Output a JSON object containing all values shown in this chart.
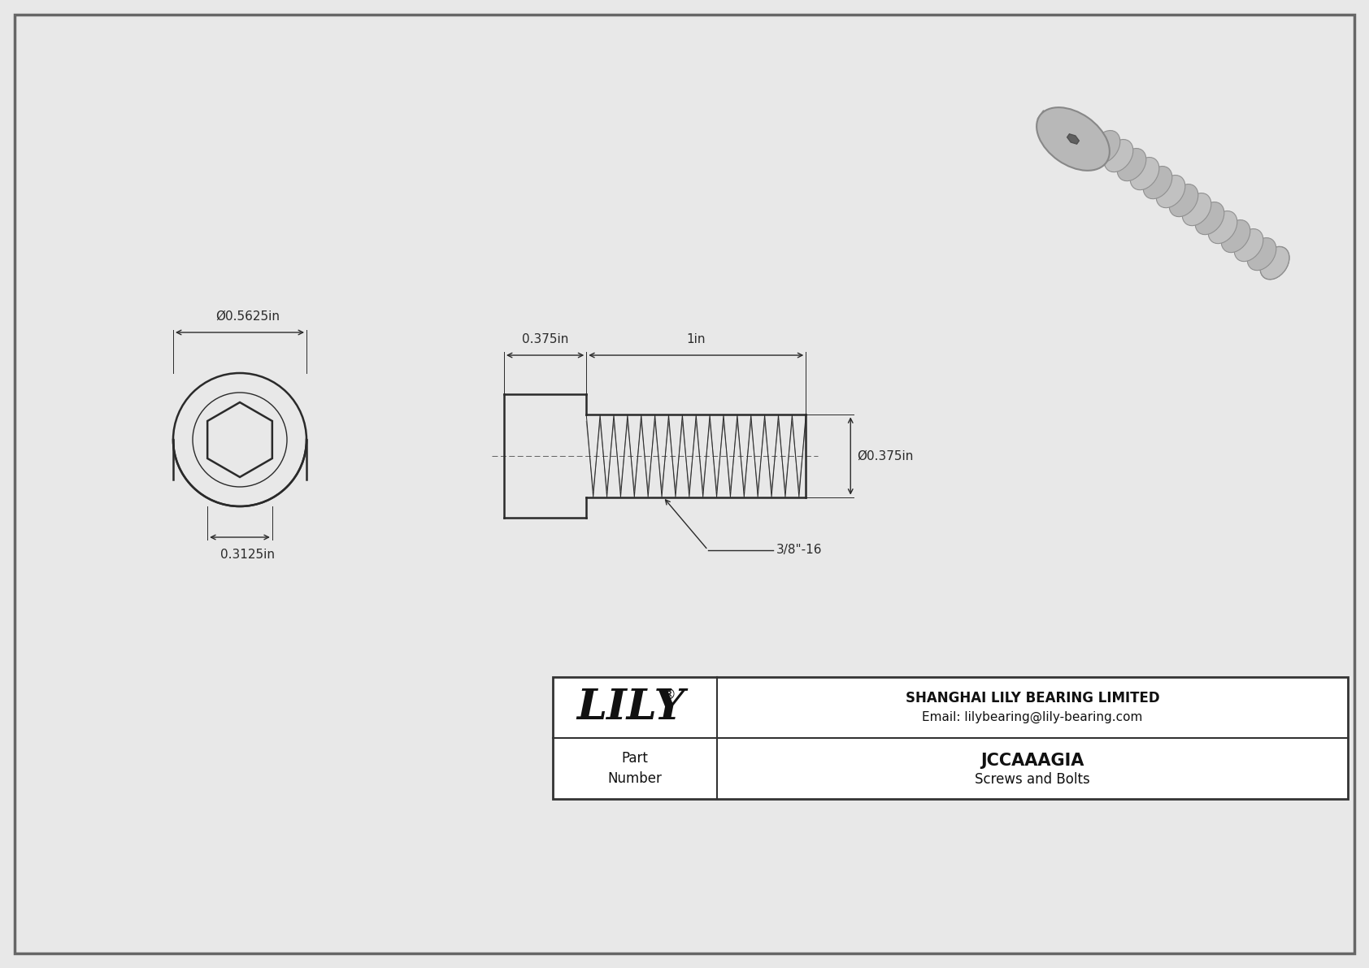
{
  "bg_color": "#e8e8e8",
  "drawing_bg": "#ffffff",
  "line_color": "#2a2a2a",
  "dim_color": "#2a2a2a",
  "title": "JCCAAAGIA",
  "subtitle": "Screws and Bolts",
  "company": "SHANGHAI LILY BEARING LIMITED",
  "email": "Email: lilybearing@lily-bearing.com",
  "part_label": "Part\nNumber",
  "logo_text": "LILY",
  "logo_reg": "®",
  "dim_head_diameter": "Ø0.5625in",
  "dim_hex_width": "0.3125in",
  "dim_head_length": "0.375in",
  "dim_thread_length": "1in",
  "dim_thread_dia": "Ø0.375in",
  "dim_thread_label": "3/8\"-16",
  "border_color": "#888888",
  "thin_line": 0.7,
  "medium_line": 1.0,
  "thick_line": 1.8
}
